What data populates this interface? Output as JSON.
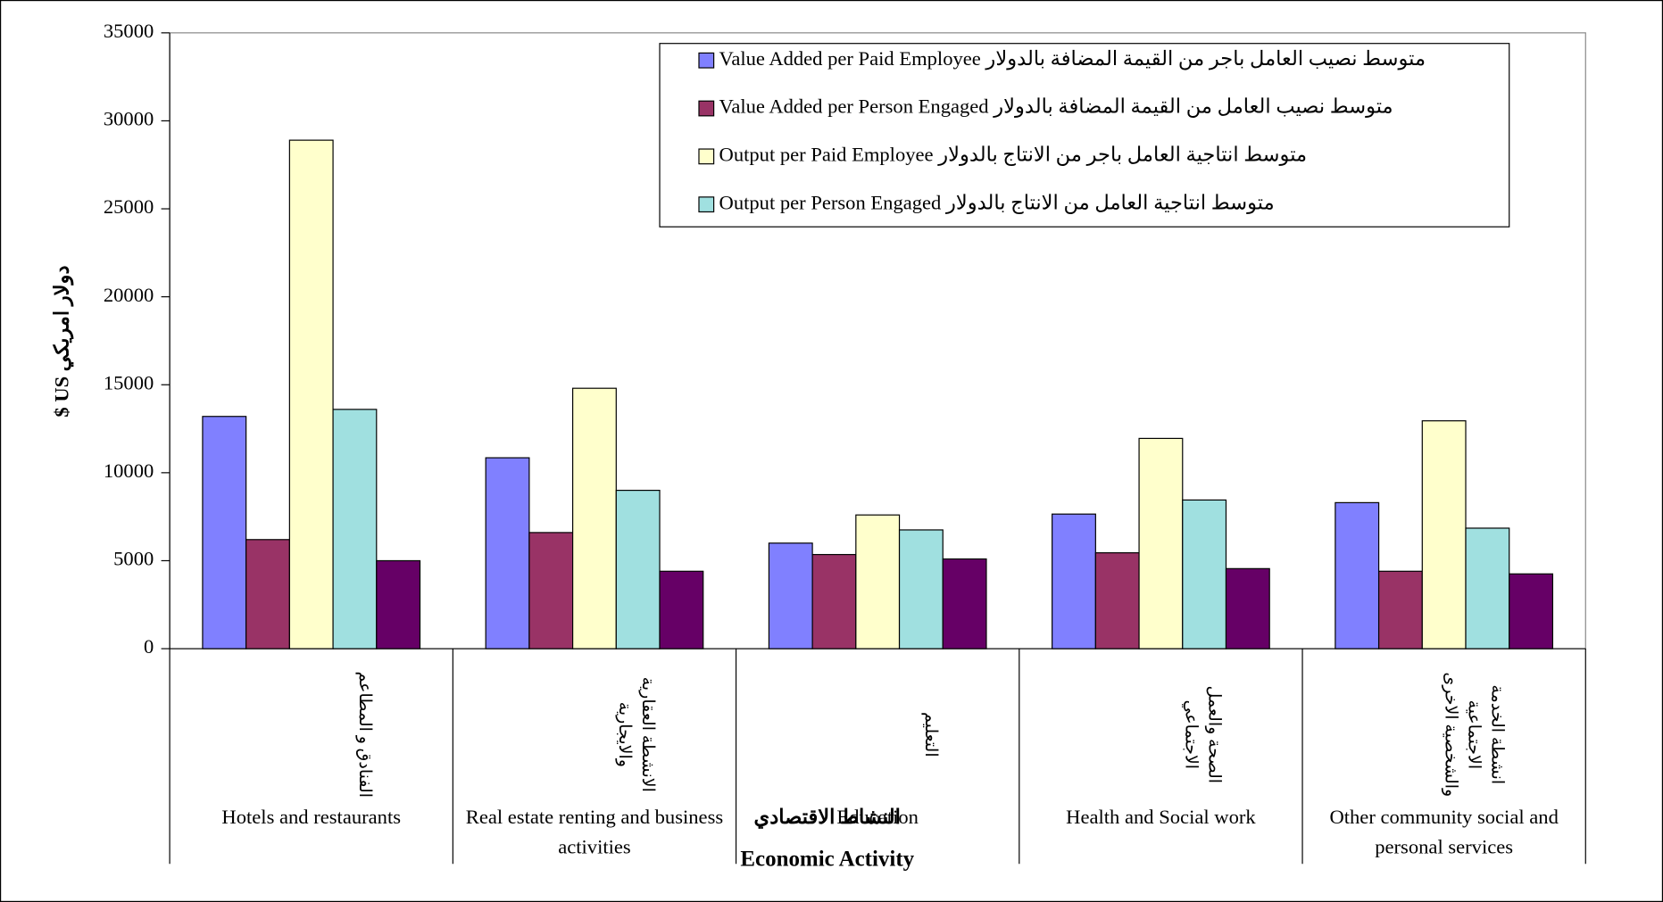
{
  "chart_data": {
    "type": "bar",
    "x_label": "Economic Activity",
    "x_label_ar": "النشاط الاقتصادي",
    "y_label": "$ US  دولار امريكي",
    "categories": [
      "Hotels and restaurants",
      "Real estate renting and business activities",
      "Education",
      "Health and Social work",
      "Other community social and personal services"
    ],
    "categories_ar": [
      "الفنادق و المطاعم",
      "الانشطة العقارية والايجارية",
      "التعليم",
      "الصحة والعمل الاجتماعي",
      "انشطة الخدمة الاجتماعية والشخصية الاخرى"
    ],
    "series": [
      {
        "name": "Value Added per Paid Employee متوسط نصيب العامل باجر من القيمة المضافة بالدولار",
        "color": "#8080ff",
        "values": [
          13200,
          10850,
          6000,
          7650,
          8300
        ]
      },
      {
        "name": "Value Added per Person Engaged متوسط نصيب العامل من القيمة المضافة بالدولار",
        "color": "#993366",
        "values": [
          6200,
          6600,
          5350,
          5450,
          4400
        ]
      },
      {
        "name": "Output per Paid Employee متوسط انتاجية العامل باجر من الانتاج  بالدولار",
        "color": "#ffffcc",
        "values": [
          28900,
          14800,
          7600,
          11950,
          12950
        ]
      },
      {
        "name": "Output per Person Engaged  متوسط انتاجية العامل من الانتاج  بالدولار",
        "color": "#a0e0e0",
        "values": [
          13600,
          9000,
          6750,
          8450,
          6850
        ]
      },
      {
        "color": "#660066",
        "values": [
          5000,
          4400,
          5100,
          4550,
          4250
        ]
      }
    ],
    "ylim": [
      0,
      35000
    ],
    "yticks": [
      0,
      5000,
      10000,
      15000,
      20000,
      25000,
      30000,
      35000
    ],
    "grid": false
  }
}
